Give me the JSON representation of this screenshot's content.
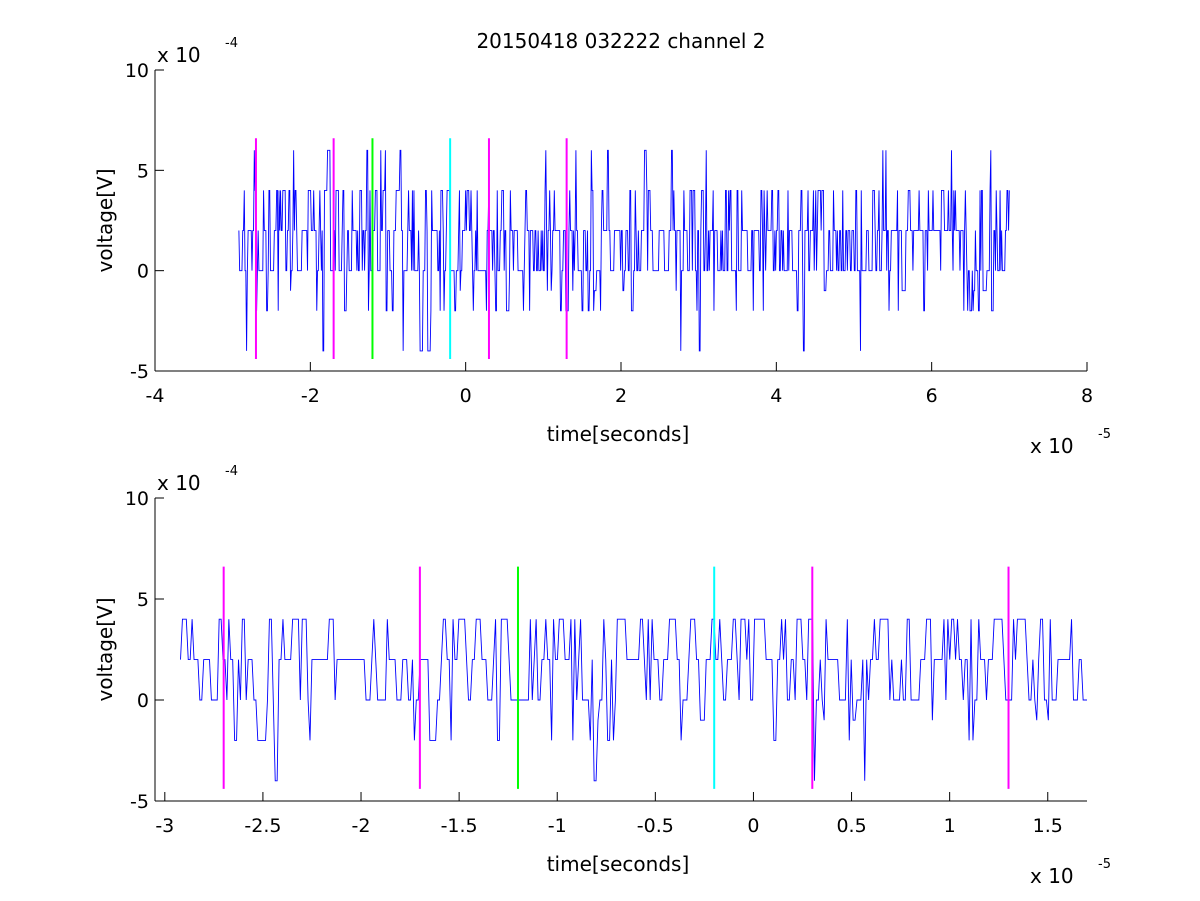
{
  "chart_data": [
    {
      "type": "line",
      "title": "20150418 032222 channel 2",
      "xlabel": "time[seconds]",
      "ylabel": "voltage[V]",
      "x_exponent_label": "x 10",
      "x_exponent": "-5",
      "y_exponent_label": "x 10",
      "y_exponent": "-4",
      "xlim": [
        -4,
        8
      ],
      "ylim": [
        -5,
        10
      ],
      "xticks": [
        -4,
        -2,
        0,
        2,
        4,
        6,
        8
      ],
      "xtick_labels": [
        "-4",
        "-2",
        "0",
        "2",
        "4",
        "6",
        "8"
      ],
      "yticks": [
        -5,
        0,
        5,
        10
      ],
      "ytick_labels": [
        "-5",
        "0",
        "5",
        "10"
      ],
      "grid": false,
      "series": [
        {
          "color": "#0000ff",
          "x_range": [
            -2.92,
            7.0
          ],
          "levels": [
            -4,
            -2,
            -1,
            0,
            2,
            4,
            6
          ],
          "description_level_base": 2
        }
      ],
      "vlines": [
        {
          "x": -2.7,
          "color": "#ff00ff",
          "ymin": -4.4,
          "ymax": 6.6
        },
        {
          "x": -1.7,
          "color": "#ff00ff",
          "ymin": -4.4,
          "ymax": 6.6
        },
        {
          "x": -1.2,
          "color": "#00ff00",
          "ymin": -4.4,
          "ymax": 6.6
        },
        {
          "x": -0.2,
          "color": "#00ffff",
          "ymin": -4.4,
          "ymax": 6.6
        },
        {
          "x": 0.3,
          "color": "#ff00ff",
          "ymin": -4.4,
          "ymax": 6.6
        },
        {
          "x": 1.3,
          "color": "#ff00ff",
          "ymin": -4.4,
          "ymax": 6.6
        }
      ]
    },
    {
      "type": "line",
      "title": "",
      "xlabel": "time[seconds]",
      "ylabel": "voltage[V]",
      "x_exponent_label": "x 10",
      "x_exponent": "-5",
      "y_exponent_label": "x 10",
      "y_exponent": "-4",
      "xlim": [
        -3.05,
        1.7
      ],
      "ylim": [
        -5,
        10
      ],
      "xticks": [
        -3,
        -2.5,
        -2,
        -1.5,
        -1,
        -0.5,
        0,
        0.5,
        1,
        1.5
      ],
      "xtick_labels": [
        "-3",
        "-2.5",
        "-2",
        "-1.5",
        "-1",
        "-0.5",
        "0",
        "0.5",
        "1",
        "1.5"
      ],
      "yticks": [
        -5,
        0,
        5,
        10
      ],
      "ytick_labels": [
        "-5",
        "0",
        "5",
        "10"
      ],
      "grid": false,
      "series": [
        {
          "color": "#0000ff",
          "x_range": [
            -2.92,
            1.7
          ],
          "levels": [
            -4,
            -2,
            -1,
            0,
            2,
            4
          ],
          "description_level_base": 2
        }
      ],
      "vlines": [
        {
          "x": -2.7,
          "color": "#ff00ff",
          "ymin": -4.4,
          "ymax": 6.6
        },
        {
          "x": -1.7,
          "color": "#ff00ff",
          "ymin": -4.4,
          "ymax": 6.6
        },
        {
          "x": -1.2,
          "color": "#00ff00",
          "ymin": -4.4,
          "ymax": 6.6
        },
        {
          "x": -0.2,
          "color": "#00ffff",
          "ymin": -4.4,
          "ymax": 6.6
        },
        {
          "x": 0.3,
          "color": "#ff00ff",
          "ymin": -4.4,
          "ymax": 6.6
        },
        {
          "x": 1.3,
          "color": "#ff00ff",
          "ymin": -4.4,
          "ymax": 6.6
        }
      ]
    }
  ]
}
